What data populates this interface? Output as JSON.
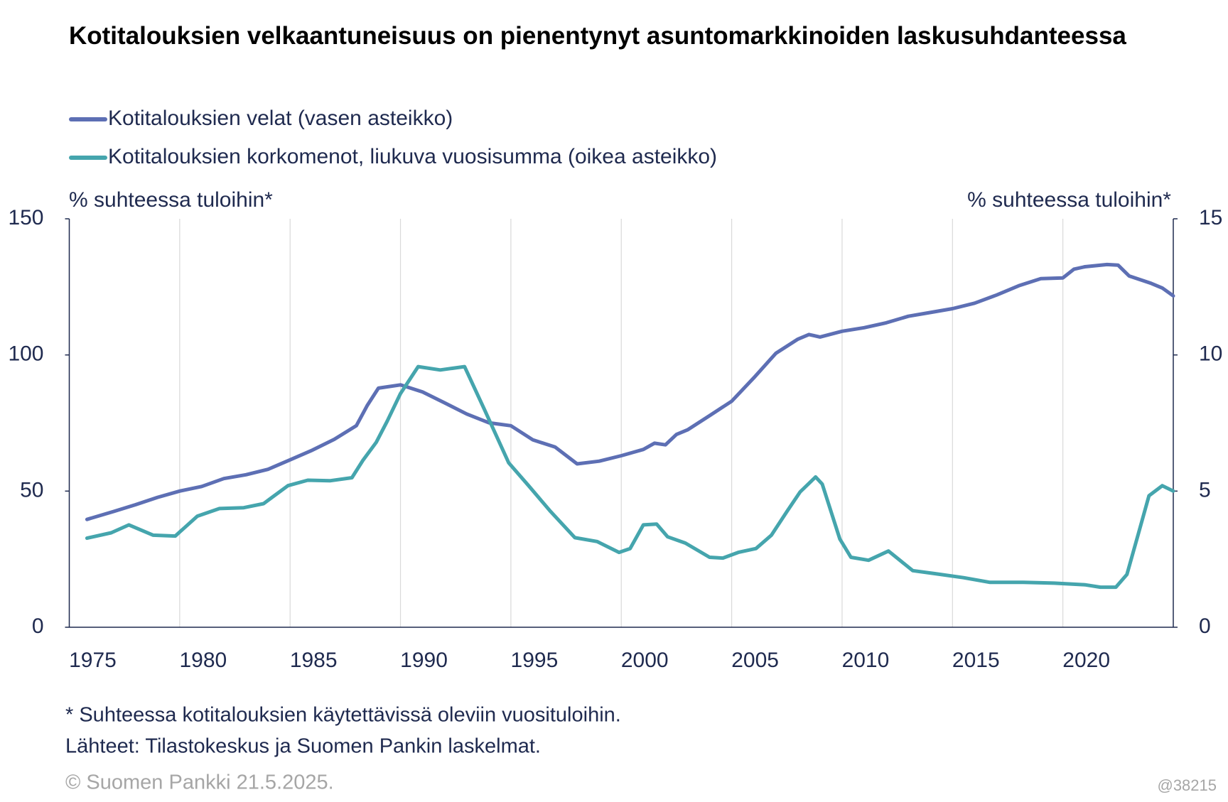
{
  "chart_data": {
    "type": "line",
    "title": "Kotitalouksien velkaantuneisuus on pienentynyt asuntomarkkinoiden laskusuhdanteessa",
    "ylabel": "% suhteessa tuloihin*",
    "y2label": "% suhteessa tuloihin*",
    "xlim": [
      1975,
      2025
    ],
    "xticks": [
      1975,
      1980,
      1985,
      1990,
      1995,
      2000,
      2005,
      2010,
      2015,
      2020
    ],
    "ylim": [
      0,
      150
    ],
    "yticks": [
      0,
      50,
      100,
      150
    ],
    "y2lim": [
      0,
      15
    ],
    "y2ticks": [
      0,
      5,
      10,
      15
    ],
    "grid": "x",
    "series": [
      {
        "name": "Kotitalouksien velat (vasen asteikko)",
        "color": "#5d6fb4",
        "axis": "y",
        "x": [
          1975.8,
          1977,
          1978,
          1979,
          1980,
          1981,
          1982,
          1983,
          1984,
          1985,
          1986,
          1987,
          1988,
          1988.5,
          1989,
          1990,
          1991,
          1992,
          1993,
          1994,
          1995,
          1996,
          1997,
          1998,
          1999,
          2000,
          2001,
          2001.5,
          2002,
          2002.5,
          2003,
          2004,
          2005,
          2006,
          2007,
          2008,
          2008.5,
          2009,
          2010,
          2011,
          2012,
          2013,
          2014,
          2015,
          2016,
          2017,
          2018,
          2019,
          2020,
          2020.5,
          2021,
          2022,
          2022.5,
          2023,
          2024,
          2024.5,
          2025
        ],
        "values": [
          39.6,
          42.5,
          45,
          47.7,
          50,
          51.7,
          54.6,
          56,
          58,
          61.5,
          65,
          69,
          74,
          81.5,
          87.8,
          89,
          86.4,
          82.4,
          78.3,
          75.1,
          74,
          68.8,
          66.2,
          60,
          61,
          63,
          65.3,
          67.6,
          67,
          70.8,
          72.5,
          77.7,
          83,
          91.6,
          100.6,
          105.8,
          107.5,
          106.6,
          108.7,
          110,
          111.8,
          114.2,
          115.6,
          117,
          119,
          122,
          125.4,
          128,
          128.3,
          131.5,
          132.4,
          133.2,
          133,
          129,
          126.3,
          124.6,
          121.7
        ]
      },
      {
        "name": "Kotitalouksien korkomenot, liukuva vuosisumma (oikea asteikko)",
        "color": "#45a5ad",
        "axis": "y2",
        "x": [
          1975.8,
          1976.9,
          1977.7,
          1978.8,
          1979.8,
          1980.8,
          1981.8,
          1982.9,
          1983.8,
          1984.9,
          1985.8,
          1986.8,
          1987.8,
          1988.3,
          1988.9,
          1989.4,
          1990.0,
          1990.8,
          1991.8,
          1992.9,
          1993.8,
          1994.9,
          1995.8,
          1996.8,
          1997.9,
          1998.9,
          1999.9,
          2000.4,
          2001.0,
          2001.6,
          2002.1,
          2002.9,
          2004.0,
          2004.6,
          2005.3,
          2006.1,
          2006.8,
          2007.5,
          2008.1,
          2008.8,
          2009.1,
          2009.5,
          2009.9,
          2010.4,
          2011.2,
          2012.1,
          2013.2,
          2014.2,
          2015.5,
          2016.7,
          2018.2,
          2019.6,
          2021.0,
          2021.7,
          2022.4,
          2022.9,
          2023.4,
          2023.9,
          2024.5,
          2025.0
        ],
        "values": [
          3.27,
          3.47,
          3.76,
          3.38,
          3.35,
          4.08,
          4.36,
          4.39,
          4.54,
          5.2,
          5.4,
          5.38,
          5.49,
          6.13,
          6.79,
          7.57,
          8.58,
          9.57,
          9.45,
          9.57,
          8.0,
          6.04,
          5.2,
          4.25,
          3.29,
          3.15,
          2.75,
          2.89,
          3.76,
          3.79,
          3.32,
          3.09,
          2.57,
          2.54,
          2.75,
          2.89,
          3.38,
          4.25,
          4.97,
          5.52,
          5.26,
          4.25,
          3.24,
          2.57,
          2.46,
          2.8,
          2.08,
          1.97,
          1.82,
          1.65,
          1.65,
          1.62,
          1.56,
          1.47,
          1.47,
          1.94,
          3.38,
          4.83,
          5.2,
          5.0
        ]
      }
    ],
    "footnotes": [
      "* Suhteessa kotitalouksien käytettävissä oleviin vuosituloihin.",
      "Lähteet: Tilastokeskus ja Suomen Pankin laskelmat.",
      "© Suomen Pankki 21.5.2025."
    ],
    "id_label": "@38215"
  }
}
